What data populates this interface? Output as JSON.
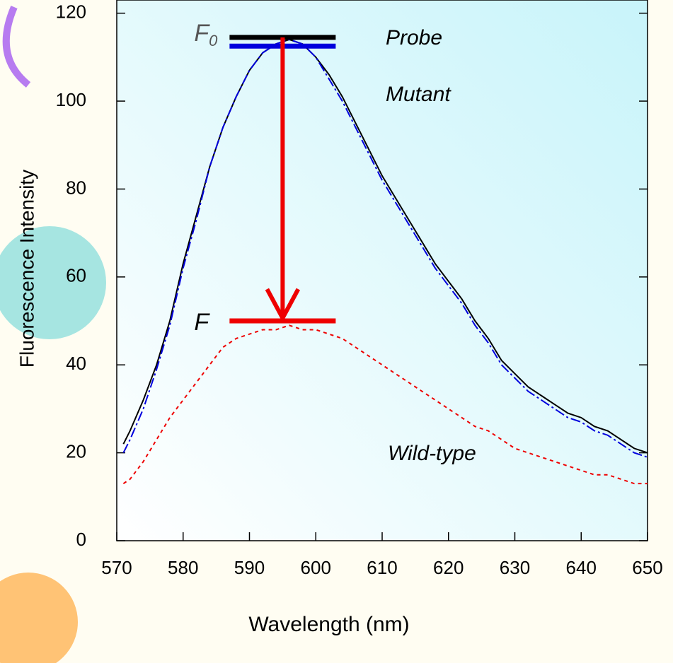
{
  "chart_data": {
    "type": "line",
    "x_label": "Wavelength (nm)",
    "y_label": "Fluorescence Intensity",
    "xlim": [
      570,
      650
    ],
    "ylim": [
      0,
      123
    ],
    "xticks": [
      570,
      580,
      590,
      600,
      610,
      620,
      630,
      640,
      650
    ],
    "yticks": [
      0,
      20,
      40,
      60,
      80,
      100,
      120
    ],
    "x": [
      571,
      572,
      574,
      576,
      578,
      580,
      582,
      584,
      586,
      588,
      590,
      592,
      594,
      596,
      598,
      600,
      602,
      604,
      606,
      608,
      610,
      612,
      614,
      616,
      618,
      620,
      622,
      624,
      626,
      628,
      630,
      632,
      634,
      636,
      638,
      640,
      642,
      644,
      646,
      648,
      650
    ],
    "series": [
      {
        "name": "Probe",
        "color": "#000000",
        "style": "solid",
        "values": [
          22,
          25,
          32,
          40,
          50,
          63,
          74,
          85,
          94,
          101,
          107,
          111,
          113,
          114,
          113,
          110,
          106,
          101,
          95,
          89,
          83,
          78,
          73,
          68,
          63,
          59,
          55,
          50,
          46,
          41,
          38,
          35,
          33,
          31,
          29,
          28,
          26,
          25,
          23,
          21,
          20
        ]
      },
      {
        "name": "Mutant",
        "color": "#0000dd",
        "style": "dashdot",
        "values": [
          20,
          23,
          30,
          39,
          49,
          62,
          73,
          85,
          94,
          101,
          107,
          111,
          113,
          114,
          113,
          110,
          105,
          100,
          94,
          88,
          82,
          77,
          72,
          67,
          62,
          58,
          54,
          49,
          45,
          40,
          37,
          34,
          32,
          30,
          28,
          27,
          25,
          24,
          22,
          20,
          19
        ]
      },
      {
        "name": "Wild-type",
        "color": "#ee0000",
        "style": "dotted",
        "values": [
          13,
          14,
          18,
          23,
          28,
          32,
          36,
          40,
          44,
          46,
          47,
          48,
          48,
          49,
          48,
          48,
          47,
          46,
          44,
          42,
          40,
          38,
          36,
          34,
          32,
          30,
          28,
          26,
          25,
          23,
          21,
          20,
          19,
          18,
          17,
          16,
          15,
          15,
          14,
          13,
          13
        ]
      }
    ],
    "annotations": {
      "f0": {
        "label": "F",
        "subscript": "0",
        "probe_level": 114.5,
        "mutant_level": 112.5
      },
      "f": {
        "label": "F",
        "level": 50
      },
      "arrow_x": 595,
      "bar_range": [
        587,
        603
      ]
    }
  }
}
